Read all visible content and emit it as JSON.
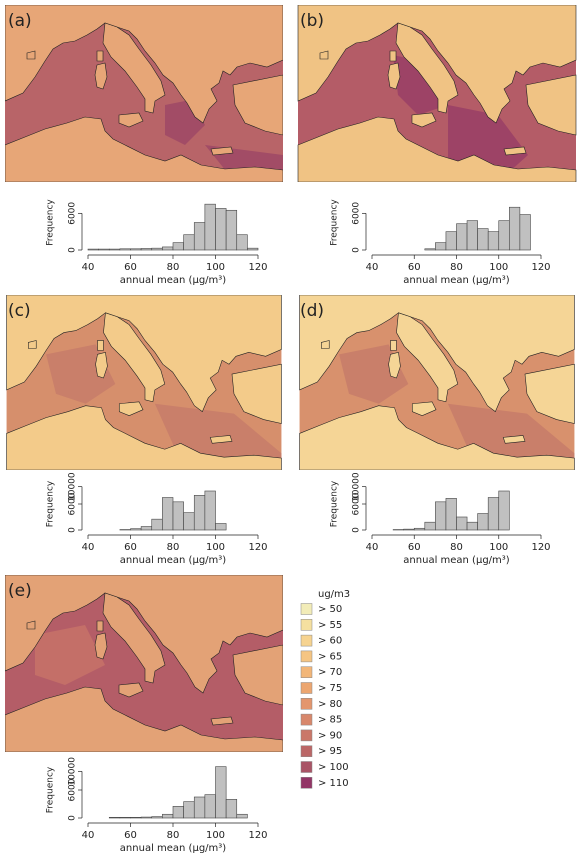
{
  "chart_data": [
    {
      "type": "histogram",
      "panel": "(a)",
      "xlabel": "annual mean (µg/m³)",
      "ylabel": "Frequency",
      "color": "#c0c0c0",
      "bins": [
        40,
        45,
        50,
        55,
        60,
        65,
        70,
        75,
        80,
        85,
        90,
        95,
        100,
        105,
        110,
        115,
        120
      ],
      "counts": [
        150,
        150,
        150,
        200,
        200,
        250,
        300,
        500,
        1200,
        2500,
        4500,
        7500,
        6800,
        6500,
        2500,
        300
      ],
      "xlim": [
        40,
        120
      ],
      "xticks": [
        40,
        60,
        80,
        100,
        120
      ],
      "ylim": [
        0,
        9000
      ],
      "yticks": [
        0,
        6000
      ]
    },
    {
      "type": "histogram",
      "panel": "(b)",
      "xlabel": "annual mean (µg/m³)",
      "ylabel": "Frequency",
      "color": "#c0c0c0",
      "bins": [
        40,
        45,
        50,
        55,
        60,
        65,
        70,
        75,
        80,
        85,
        90,
        95,
        100,
        105,
        110,
        115,
        120
      ],
      "counts": [
        0,
        0,
        0,
        0,
        0,
        200,
        1200,
        3000,
        4300,
        4800,
        3500,
        3000,
        4800,
        7000,
        5800,
        0
      ],
      "xlim": [
        40,
        120
      ],
      "xticks": [
        40,
        60,
        80,
        100,
        120
      ],
      "ylim": [
        0,
        9000
      ],
      "yticks": [
        0,
        6000
      ]
    },
    {
      "type": "histogram",
      "panel": "(c)",
      "xlabel": "annual mean (µg/m³)",
      "ylabel": "Frequency",
      "color": "#c0c0c0",
      "bins": [
        40,
        45,
        50,
        55,
        60,
        65,
        70,
        75,
        80,
        85,
        90,
        95,
        100,
        105,
        110,
        115,
        120
      ],
      "counts": [
        0,
        0,
        0,
        100,
        300,
        800,
        2500,
        7500,
        6500,
        4000,
        8000,
        9000,
        1500,
        0,
        0,
        0
      ],
      "xlim": [
        40,
        120
      ],
      "xticks": [
        40,
        60,
        80,
        100,
        120
      ],
      "ylim": [
        0,
        12000
      ],
      "yticks": [
        0,
        6000,
        10000
      ]
    },
    {
      "type": "histogram",
      "panel": "(d)",
      "xlabel": "annual mean (µg/m³)",
      "ylabel": "Frequency",
      "color": "#c0c0c0",
      "bins": [
        40,
        45,
        50,
        55,
        60,
        65,
        70,
        75,
        80,
        85,
        90,
        95,
        100,
        105,
        110,
        115,
        120
      ],
      "counts": [
        0,
        0,
        100,
        200,
        400,
        1800,
        6500,
        7300,
        3000,
        1800,
        3800,
        7500,
        9000,
        0,
        0,
        0
      ],
      "xlim": [
        40,
        120
      ],
      "xticks": [
        40,
        60,
        80,
        100,
        120
      ],
      "ylim": [
        0,
        12000
      ],
      "yticks": [
        0,
        6000,
        10000
      ]
    },
    {
      "type": "histogram",
      "panel": "(e)",
      "xlabel": "annual mean (µg/m³)",
      "ylabel": "Frequency",
      "color": "#c0c0c0",
      "bins": [
        40,
        45,
        50,
        55,
        60,
        65,
        70,
        75,
        80,
        85,
        90,
        95,
        100,
        105,
        110,
        115,
        120
      ],
      "counts": [
        0,
        0,
        150,
        150,
        150,
        200,
        300,
        800,
        2500,
        3500,
        4500,
        5000,
        11000,
        4000,
        800,
        0
      ],
      "xlim": [
        40,
        120
      ],
      "xticks": [
        40,
        60,
        80,
        100,
        120
      ],
      "ylim": [
        0,
        12000
      ],
      "yticks": [
        0,
        6000,
        10000
      ]
    }
  ],
  "legend": {
    "title": "ug/m3",
    "entries": [
      {
        "label": "> 50",
        "color": "#f2ecb8"
      },
      {
        "label": "> 55",
        "color": "#f5e0a0"
      },
      {
        "label": "> 60",
        "color": "#f6d390"
      },
      {
        "label": "> 65",
        "color": "#f5c583"
      },
      {
        "label": "> 70",
        "color": "#f2b678"
      },
      {
        "label": "> 75",
        "color": "#eca670"
      },
      {
        "label": "> 80",
        "color": "#e3966d"
      },
      {
        "label": "> 85",
        "color": "#d8876b"
      },
      {
        "label": "> 90",
        "color": "#ca7769"
      },
      {
        "label": "> 95",
        "color": "#bb6767"
      },
      {
        "label": "> 100",
        "color": "#a95466"
      },
      {
        "label": "> 110",
        "color": "#923566"
      }
    ]
  }
}
